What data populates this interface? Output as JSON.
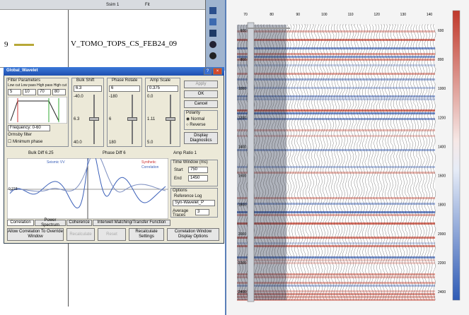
{
  "viewer": {
    "toolbar_label": "Ssim 1",
    "toolbar_label2": "Fit",
    "track_number": "9",
    "well_name": "V_TOMO_TOPS_CS_FEB24_09"
  },
  "dialog": {
    "title": "Global_Wavelet",
    "filter": {
      "title": "Filter Parameters",
      "header": "Low cut  Low pass  High pass  High cut",
      "values": [
        "5",
        "10",
        "70",
        "80"
      ],
      "frequency": "Frequency: 0-60",
      "window": "Ormsby filter",
      "min_phase": "Minimum phase"
    },
    "bulk": {
      "title": "Bulk Shift",
      "value": "6.3",
      "top": "-40.0",
      "mid": "6.3",
      "bottom": "40.0"
    },
    "phase": {
      "title": "Phase Rotate",
      "value": "6",
      "top": "-180",
      "mid": "6",
      "bottom": "180"
    },
    "amp": {
      "title": "Amp Scale",
      "value": "0.375",
      "top": "0.0",
      "mid": "1.11",
      "bottom": "5.0"
    },
    "buttons": {
      "apply": "Apply",
      "ok": "OK",
      "cancel": "Cancel",
      "diagnostics": "Display Diagnostics"
    },
    "polarity": {
      "title": "Polarity",
      "normal": "Normal",
      "reverse": "Reverse"
    },
    "diffs": {
      "bulk": "Bulk Diff   6.25",
      "phase": "Phase Diff   6",
      "amp": "Amp Ratio   1"
    },
    "graph": {
      "legend1": "Seismic VV",
      "legend2": "Synthetic",
      "legend3": "Correlation",
      "y_label": "0.218"
    },
    "time_window": {
      "title": "Time Window (ms)",
      "start_label": "Start",
      "start": "750",
      "end_label": "End",
      "end": "1450"
    },
    "options": {
      "title": "Options",
      "ref_label": "Reference Log",
      "ref_value": "Syn-Wavelet_P",
      "avg_label": "Average Traces",
      "avg_value": "3"
    },
    "tabs": [
      "Correlation",
      "Power Spectrum",
      "Coherence",
      "Interwell Matching/Transfer Function"
    ],
    "actions": [
      "Allow Correlation To Override Window",
      "Recalculate",
      "Reset",
      "Recalculate Settings",
      "Correlation Window Display Options"
    ]
  },
  "seismic": {
    "top_labels": [
      "70",
      "80",
      "90",
      "100",
      "110",
      "120",
      "130",
      "140"
    ],
    "time_labels": [
      "600",
      "800",
      "1000",
      "1200",
      "1400",
      "1600",
      "1800",
      "2000",
      "2200",
      "2400"
    ]
  }
}
